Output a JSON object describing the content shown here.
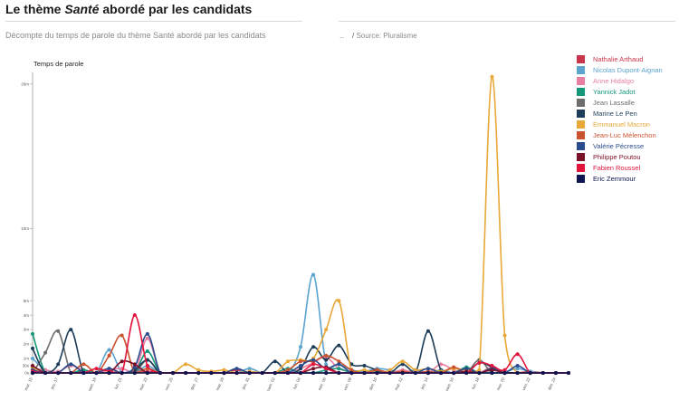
{
  "header": {
    "title_prefix": "Le thème ",
    "title_emphasis": "Santé",
    "title_suffix": " abordé par les candidats",
    "subtitle": "Décompte du temps de parole du thème Santé abordé par les candidats",
    "ellipsis": "..",
    "source_separator": "/",
    "source": "Source: Pluralisme"
  },
  "chart_data": {
    "type": "line",
    "title": "",
    "xlabel": "",
    "ylabel": "Temps de parole",
    "ylim": [
      0,
      20.8
    ],
    "y_ticks": [
      {
        "value": 0,
        "label": "0s"
      },
      {
        "value": 0.5,
        "label": "30s"
      },
      {
        "value": 1,
        "label": "1m"
      },
      {
        "value": 2,
        "label": "2m"
      },
      {
        "value": 3,
        "label": "3m"
      },
      {
        "value": 4,
        "label": "4m"
      },
      {
        "value": 5,
        "label": "5m"
      },
      {
        "value": 10,
        "label": "10m"
      },
      {
        "value": 20,
        "label": "20m"
      }
    ],
    "x_count": 43,
    "x_ticks": [
      {
        "index": 0,
        "label": "mar. 15"
      },
      {
        "index": 2,
        "label": "jeu. 17"
      },
      {
        "index": 5,
        "label": "sam. 19"
      },
      {
        "index": 7,
        "label": "lun. 21"
      },
      {
        "index": 9,
        "label": "mer. 23"
      },
      {
        "index": 11,
        "label": "ven. 25"
      },
      {
        "index": 13,
        "label": "dim. 27"
      },
      {
        "index": 15,
        "label": "mar. 29"
      },
      {
        "index": 17,
        "label": "jeu. 31"
      },
      {
        "index": 19,
        "label": "sam. 02"
      },
      {
        "index": 21,
        "label": "lun. 04"
      },
      {
        "index": 23,
        "label": "mer. 06"
      },
      {
        "index": 25,
        "label": "ven. 08"
      },
      {
        "index": 27,
        "label": "dim. 10"
      },
      {
        "index": 29,
        "label": "mar. 12"
      },
      {
        "index": 31,
        "label": "jeu. 14"
      },
      {
        "index": 33,
        "label": "sam. 16"
      },
      {
        "index": 35,
        "label": "lun. 18"
      },
      {
        "index": 37,
        "label": "mer. 20"
      },
      {
        "index": 39,
        "label": "ven. 22"
      },
      {
        "index": 41,
        "label": "dim. 24"
      }
    ],
    "legend_position": "right",
    "grid": false,
    "series": [
      {
        "name": "Nathalie Arthaud",
        "color": "#c8344a",
        "values": [
          0.2,
          0,
          0,
          0,
          0.1,
          0,
          0,
          0,
          0,
          0.1,
          0,
          0,
          0,
          0,
          0,
          0,
          0.2,
          0,
          0,
          0,
          0,
          0,
          0,
          0,
          0,
          0,
          0,
          0,
          0,
          0,
          0,
          0,
          0,
          0,
          0,
          0,
          0,
          0,
          0,
          0.1,
          0,
          0,
          0
        ]
      },
      {
        "name": "Nicolas Dupont-Aignan",
        "color": "#5ba4cf",
        "values": [
          1.0,
          0.2,
          0,
          0,
          0,
          0,
          1.6,
          0,
          0,
          0.5,
          0,
          0,
          0,
          0,
          0,
          0,
          0,
          0.3,
          0,
          0,
          0,
          1.8,
          6.8,
          0.6,
          0.6,
          0.2,
          0.1,
          0.3,
          0.2,
          0,
          0.2,
          0,
          0.2,
          0,
          0.1,
          0,
          0.2,
          0.1,
          0.3,
          0.1,
          0,
          0,
          0
        ]
      },
      {
        "name": "Anne Hidalgo",
        "color": "#e87fa2",
        "values": [
          0.3,
          0.2,
          0.1,
          0.5,
          0.2,
          0,
          0.2,
          0.3,
          0,
          2.4,
          0,
          0,
          0,
          0,
          0,
          0,
          0,
          0,
          0,
          0,
          0,
          0.3,
          0.7,
          1.1,
          0.3,
          0.1,
          0,
          0,
          0,
          0.2,
          0,
          0,
          0.6,
          0.2,
          0,
          0,
          0.4,
          0,
          0,
          0,
          0,
          0,
          0
        ]
      },
      {
        "name": "Yannick Jadot",
        "color": "#15977a",
        "values": [
          2.7,
          0,
          0,
          0,
          0.2,
          0,
          0,
          0,
          0,
          1.5,
          0,
          0,
          0,
          0,
          0,
          0,
          0,
          0,
          0,
          0,
          0.3,
          0,
          0,
          0.2,
          0.3,
          0,
          0,
          0.1,
          0,
          0,
          0,
          0,
          0,
          0,
          0.4,
          0,
          0,
          0,
          0,
          0,
          0,
          0,
          0
        ]
      },
      {
        "name": "Jean Lassalle",
        "color": "#6d6d6d",
        "values": [
          0,
          1.4,
          2.9,
          0,
          0,
          0,
          0,
          0,
          0,
          0.9,
          0,
          0,
          0,
          0,
          0,
          0,
          0,
          0,
          0,
          0,
          0,
          0,
          0,
          0,
          0,
          0,
          0,
          0.2,
          0,
          0,
          0,
          0,
          0,
          0,
          0,
          0.9,
          0,
          0,
          0,
          0,
          0,
          0,
          0
        ]
      },
      {
        "name": "Marine Le Pen",
        "color": "#1e3d59",
        "values": [
          1.7,
          0,
          0.6,
          3.0,
          0,
          0,
          0.3,
          0,
          0.2,
          0.9,
          0,
          0,
          0,
          0,
          0,
          0,
          0,
          0,
          0,
          0.8,
          0,
          0.3,
          1.8,
          0.9,
          1.9,
          0.6,
          0.5,
          0.2,
          0,
          0.6,
          0,
          2.9,
          0.2,
          0,
          0,
          0.7,
          0.4,
          0,
          0,
          0,
          0,
          0,
          0
        ]
      },
      {
        "name": "Emmanuel Macron",
        "color": "#e8a838",
        "values": [
          0.4,
          0,
          0,
          0,
          0,
          0,
          0,
          0,
          0,
          0,
          0,
          0,
          0.6,
          0.2,
          0.1,
          0.2,
          0,
          0.1,
          0,
          0,
          0.8,
          0.9,
          1.0,
          3.0,
          5.0,
          0.1,
          0.2,
          0,
          0.2,
          0.8,
          0.2,
          0.3,
          0.1,
          0.3,
          0.2,
          0.2,
          20.5,
          2.6,
          0,
          0,
          0,
          0,
          0
        ]
      },
      {
        "name": "Jean-Luc Mélenchon",
        "color": "#c9532e",
        "values": [
          0,
          0,
          0,
          0,
          0.6,
          0,
          1.2,
          2.6,
          0,
          0.3,
          0,
          0,
          0,
          0,
          0,
          0,
          0,
          0,
          0,
          0,
          0.2,
          0.8,
          0.8,
          1.2,
          0.8,
          0.2,
          0,
          0.2,
          0,
          0.1,
          0,
          0.1,
          0,
          0.4,
          0,
          0,
          0.3,
          0,
          0,
          0,
          0,
          0,
          0
        ]
      },
      {
        "name": "Valérie Pécresse",
        "color": "#2a4b8d",
        "values": [
          0.2,
          0,
          0,
          0.6,
          0,
          0,
          0.3,
          0,
          0.4,
          2.7,
          0,
          0,
          0,
          0,
          0,
          0,
          0.3,
          0,
          0,
          0,
          0,
          0.5,
          0.9,
          0.3,
          0.6,
          0,
          0,
          0,
          0,
          0,
          0,
          0.3,
          0,
          0,
          0.3,
          0,
          0.3,
          0,
          0.5,
          0,
          0,
          0,
          0
        ]
      },
      {
        "name": "Philippe Poutou",
        "color": "#7a1028",
        "values": [
          0.5,
          0,
          0,
          0,
          0,
          0,
          0,
          0.8,
          0.6,
          0,
          0,
          0,
          0,
          0,
          0,
          0,
          0,
          0,
          0,
          0,
          0,
          0,
          0.3,
          0.4,
          0,
          0,
          0,
          0,
          0,
          0,
          0,
          0,
          0,
          0,
          0.1,
          0,
          0.2,
          0,
          0,
          0,
          0,
          0,
          0
        ]
      },
      {
        "name": "Fabien Roussel",
        "color": "#e2143c",
        "values": [
          0.1,
          0,
          0,
          0,
          0,
          0.3,
          0.1,
          0,
          4.0,
          0.5,
          0,
          0,
          0,
          0,
          0,
          0,
          0,
          0,
          0,
          0,
          0,
          0,
          0.6,
          0.3,
          0,
          0,
          0,
          0,
          0,
          0,
          0,
          0,
          0,
          0,
          0,
          0.7,
          0.5,
          0.2,
          1.3,
          0,
          0,
          0,
          0
        ]
      },
      {
        "name": "Eric Zemmour",
        "color": "#0d1450",
        "values": [
          0,
          0,
          0,
          0,
          0,
          0,
          0,
          0,
          0,
          0,
          0,
          0,
          0,
          0,
          0,
          0,
          0,
          0,
          0,
          0,
          0,
          0,
          0,
          0,
          0,
          0,
          0,
          0,
          0,
          0,
          0,
          0,
          0,
          0,
          0,
          0,
          0,
          0,
          0,
          0,
          0,
          0,
          0
        ]
      }
    ]
  }
}
